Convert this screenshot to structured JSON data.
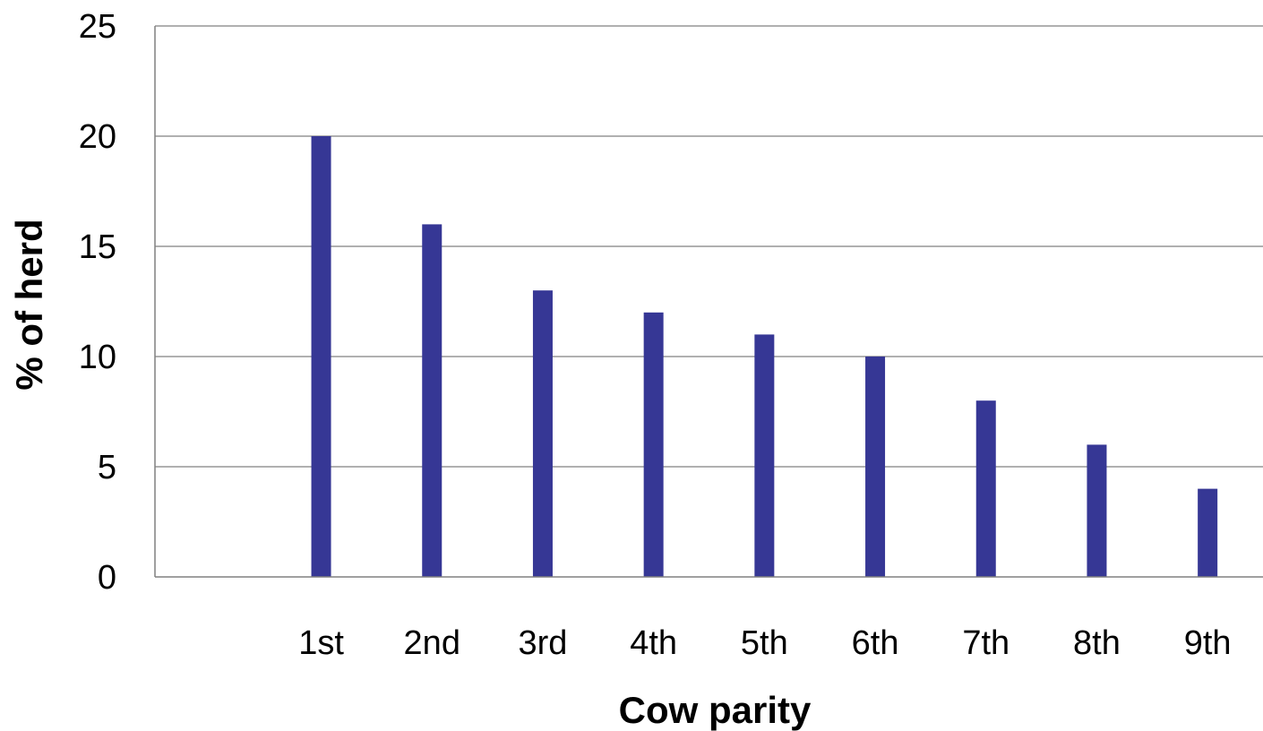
{
  "chart_data": {
    "type": "bar",
    "title": "",
    "xlabel": "Cow parity",
    "ylabel": "% of herd",
    "categories": [
      "",
      "1st",
      "2nd",
      "3rd",
      "4th",
      "5th",
      "6th",
      "7th",
      "8th",
      "9th"
    ],
    "values": [
      null,
      20,
      16,
      13,
      12,
      11,
      10,
      8,
      6,
      4
    ],
    "ylim": [
      0,
      25
    ],
    "yticks": [
      0,
      5,
      10,
      15,
      20,
      25
    ],
    "grid": true,
    "legend": "none",
    "bar_color": "#363795"
  }
}
